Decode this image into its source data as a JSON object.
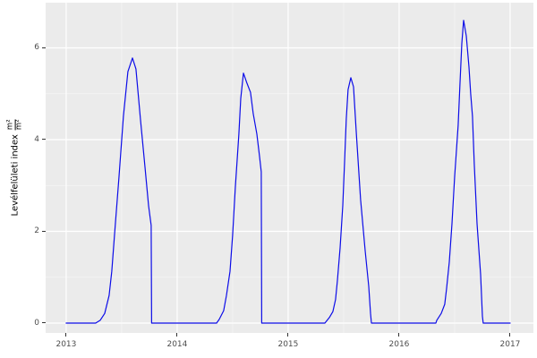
{
  "figure": {
    "background": "#FFFFFF",
    "panel_background": "#EBEBEB",
    "grid_major_color": "#FFFFFF",
    "grid_minor_color": "#F5F5F5",
    "tick_mark_color": "#333333",
    "tick_label_color": "#4D4D4D",
    "axis_title_color": "#000000"
  },
  "y_axis_title": {
    "text": "Levélfelületi index",
    "unit_numerator": "m²",
    "unit_denominator": "m²"
  },
  "chart_data": {
    "type": "line",
    "title": "",
    "xlabel": "",
    "ylabel": "Levélfelületi index m²/m²",
    "grid": "on",
    "legend": "none",
    "x_axis": {
      "tick_labels": [
        "2013",
        "2014",
        "2015",
        "2016",
        "2017"
      ],
      "ticks": [
        2013,
        2014,
        2015,
        2016,
        2017
      ],
      "minor": [
        2013.5,
        2014.5,
        2015.5,
        2016.5
      ],
      "range": [
        2012.815,
        2017.21
      ]
    },
    "y_axis": {
      "tick_labels": [
        "0",
        "2",
        "4",
        "6"
      ],
      "ticks": [
        0,
        2,
        4,
        6
      ],
      "minor": [
        1,
        3,
        5
      ],
      "range": [
        -0.215,
        6.985
      ]
    },
    "peaks_by_year": {
      "2013": 5.78,
      "2014": 5.45,
      "2015": 5.35,
      "2016": 6.6
    },
    "series": [
      {
        "name": "Levélfelületi index",
        "color": "#0C0CE8",
        "points": [
          [
            2013.0,
            0
          ],
          [
            2013.266,
            0
          ],
          [
            2013.306,
            0.06
          ],
          [
            2013.347,
            0.21
          ],
          [
            2013.387,
            0.6
          ],
          [
            2013.411,
            1.13
          ],
          [
            2013.435,
            1.91
          ],
          [
            2013.476,
            3.2
          ],
          [
            2013.516,
            4.51
          ],
          [
            2013.556,
            5.48
          ],
          [
            2013.597,
            5.78
          ],
          [
            2013.629,
            5.54
          ],
          [
            2013.669,
            4.45
          ],
          [
            2013.71,
            3.4
          ],
          [
            2013.742,
            2.56
          ],
          [
            2013.766,
            2.13
          ],
          [
            2013.77,
            0
          ],
          [
            2014.355,
            0
          ],
          [
            2014.379,
            0.08
          ],
          [
            2014.419,
            0.27
          ],
          [
            2014.444,
            0.6
          ],
          [
            2014.476,
            1.13
          ],
          [
            2014.5,
            1.91
          ],
          [
            2014.524,
            2.95
          ],
          [
            2014.556,
            4.12
          ],
          [
            2014.573,
            4.9
          ],
          [
            2014.597,
            5.45
          ],
          [
            2014.629,
            5.23
          ],
          [
            2014.661,
            5.03
          ],
          [
            2014.685,
            4.57
          ],
          [
            2014.718,
            4.12
          ],
          [
            2014.742,
            3.63
          ],
          [
            2014.758,
            3.3
          ],
          [
            2014.762,
            0
          ],
          [
            2015.331,
            0
          ],
          [
            2015.371,
            0.12
          ],
          [
            2015.403,
            0.25
          ],
          [
            2015.427,
            0.51
          ],
          [
            2015.444,
            0.93
          ],
          [
            2015.468,
            1.64
          ],
          [
            2015.492,
            2.56
          ],
          [
            2015.508,
            3.47
          ],
          [
            2015.524,
            4.45
          ],
          [
            2015.54,
            5.09
          ],
          [
            2015.565,
            5.35
          ],
          [
            2015.589,
            5.15
          ],
          [
            2015.613,
            4.18
          ],
          [
            2015.653,
            2.69
          ],
          [
            2015.694,
            1.58
          ],
          [
            2015.726,
            0.8
          ],
          [
            2015.742,
            0.21
          ],
          [
            2015.75,
            0
          ],
          [
            2016.331,
            0
          ],
          [
            2016.339,
            0.06
          ],
          [
            2016.379,
            0.21
          ],
          [
            2016.411,
            0.41
          ],
          [
            2016.427,
            0.74
          ],
          [
            2016.452,
            1.33
          ],
          [
            2016.476,
            2.17
          ],
          [
            2016.5,
            3.2
          ],
          [
            2016.532,
            4.31
          ],
          [
            2016.548,
            5.2
          ],
          [
            2016.565,
            6.1
          ],
          [
            2016.581,
            6.6
          ],
          [
            2016.605,
            6.26
          ],
          [
            2016.629,
            5.58
          ],
          [
            2016.645,
            5.0
          ],
          [
            2016.661,
            4.51
          ],
          [
            2016.677,
            3.47
          ],
          [
            2016.702,
            2.17
          ],
          [
            2016.734,
            1.06
          ],
          [
            2016.75,
            0.15
          ],
          [
            2016.758,
            0
          ],
          [
            2017.0,
            0
          ]
        ]
      }
    ]
  }
}
